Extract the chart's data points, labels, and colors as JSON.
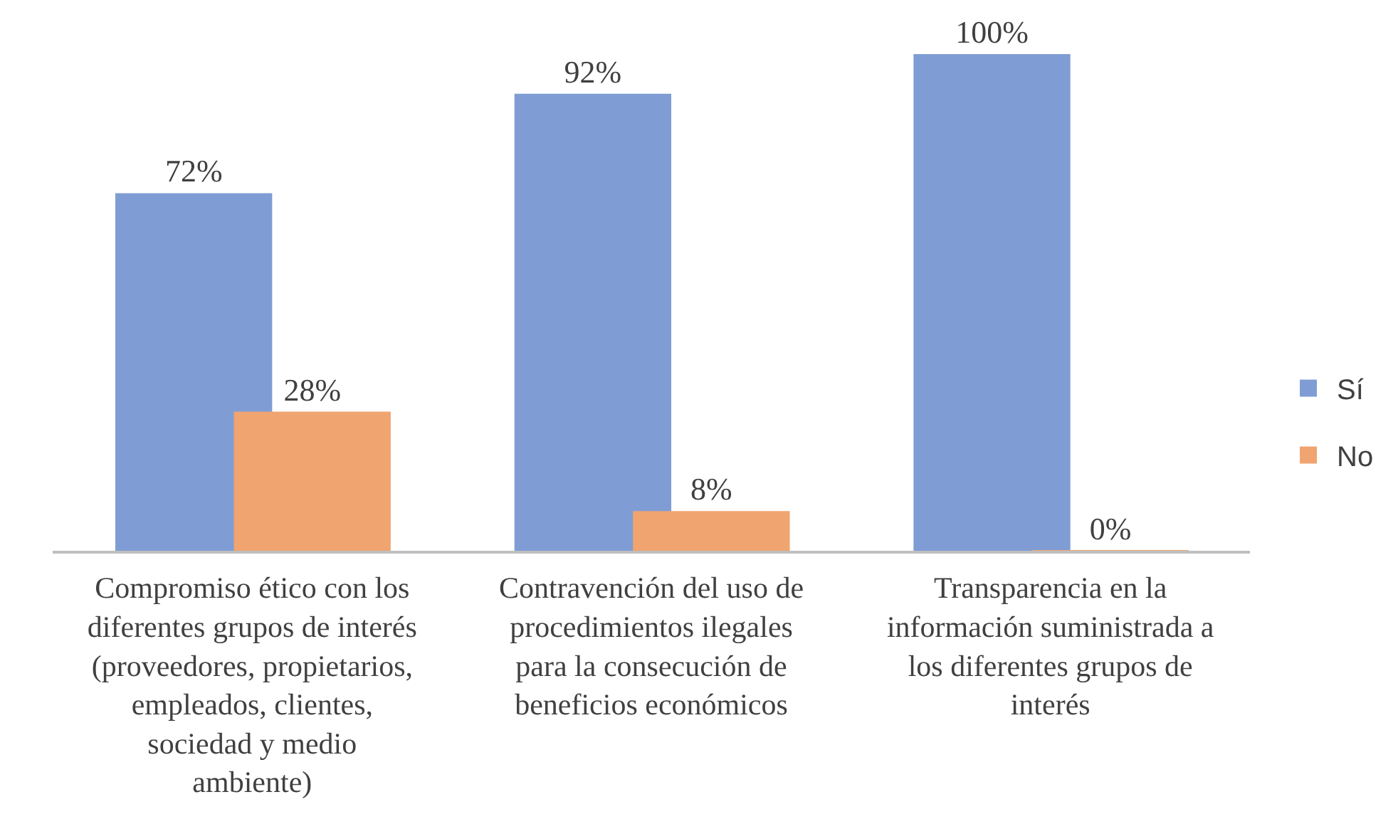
{
  "chart_data": {
    "type": "bar",
    "categories": [
      "Compromiso ético con los\ndiferentes grupos de interés\n(proveedores, propietarios,\nempleados, clientes,\nsociedad y medio\nambiente)",
      "Contravención del uso de\nprocedimientos ilegales\npara la consecución de\nbeneficios económicos",
      "Transparencia en la\ninformación suministrada a\nlos diferentes grupos de\ninterés"
    ],
    "series": [
      {
        "name": "Sí",
        "color": "#7f9dd4",
        "values": [
          72,
          92,
          100
        ],
        "value_labels": [
          "72%",
          "92%",
          "100%"
        ]
      },
      {
        "name": "No",
        "color": "#f0a46f",
        "values": [
          28,
          8,
          0
        ],
        "value_labels": [
          "28%",
          "8%",
          "0%"
        ]
      }
    ],
    "legend": "right"
  }
}
